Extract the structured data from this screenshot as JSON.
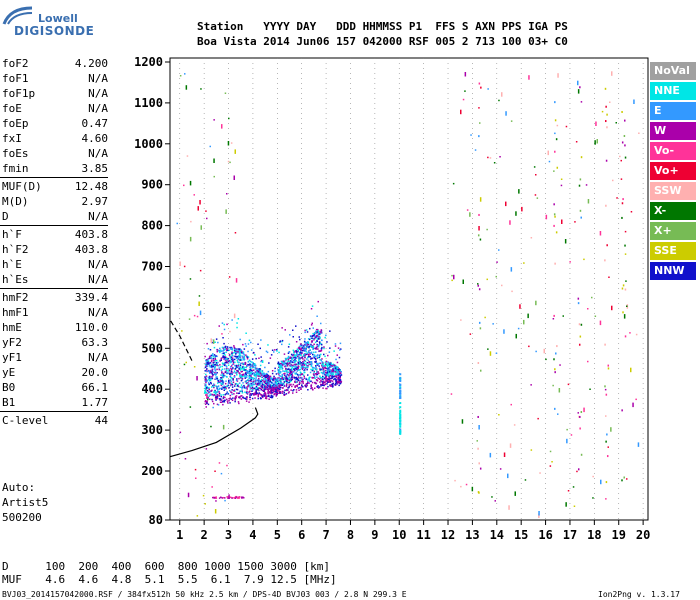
{
  "logo": {
    "line1": "Lowell",
    "line2": "DIGISONDE"
  },
  "header": {
    "line1": "Station   YYYY DAY   DDD HHMMSS P1  FFS S AXN PPS IGA PS",
    "line2": "Boa Vista 2014 Jun06 157 042000 RSF 005 2 713 100 03+ C0"
  },
  "params": [
    {
      "group": [
        {
          "label": "foF2",
          "value": "4.200"
        },
        {
          "label": "foF1",
          "value": "N/A"
        },
        {
          "label": "foF1p",
          "value": "N/A"
        },
        {
          "label": "foE",
          "value": "N/A"
        },
        {
          "label": "foEp",
          "value": "0.47"
        },
        {
          "label": "fxI",
          "value": "4.60"
        },
        {
          "label": "foEs",
          "value": "N/A"
        },
        {
          "label": "fmin",
          "value": "3.85"
        }
      ]
    },
    {
      "group": [
        {
          "label": "MUF(D)",
          "value": "12.48"
        },
        {
          "label": "M(D)",
          "value": "2.97"
        },
        {
          "label": "D",
          "value": "N/A"
        }
      ]
    },
    {
      "group": [
        {
          "label": "h`F",
          "value": "403.8"
        },
        {
          "label": "h`F2",
          "value": "403.8"
        },
        {
          "label": "h`E",
          "value": "N/A"
        },
        {
          "label": "h`Es",
          "value": "N/A"
        }
      ]
    },
    {
      "group": [
        {
          "label": "hmF2",
          "value": "339.4"
        },
        {
          "label": "hmF1",
          "value": "N/A"
        },
        {
          "label": "hmE",
          "value": "110.0"
        },
        {
          "label": "yF2",
          "value": "63.3"
        },
        {
          "label": "yF1",
          "value": "N/A"
        },
        {
          "label": "yE",
          "value": "20.0"
        },
        {
          "label": "B0",
          "value": "66.1"
        },
        {
          "label": "B1",
          "value": "1.77"
        }
      ]
    },
    {
      "group": [
        {
          "label": "C-level",
          "value": "44"
        }
      ]
    }
  ],
  "auto": [
    "Auto:",
    "Artist5",
    "500200"
  ],
  "legend": [
    {
      "label": "NoVal",
      "bg": "#a0a0a0",
      "fg": "#ffffff"
    },
    {
      "label": "NNE",
      "bg": "#00e6e6",
      "fg": "#ffffff"
    },
    {
      "label": "E",
      "bg": "#3399ff",
      "fg": "#ffffff"
    },
    {
      "label": "W",
      "bg": "#aa00aa",
      "fg": "#ffffff"
    },
    {
      "label": "Vo-",
      "bg": "#ff3399",
      "fg": "#ffffff"
    },
    {
      "label": "Vo+",
      "bg": "#ee0033",
      "fg": "#ffffff"
    },
    {
      "label": "SSW",
      "bg": "#ffb0b0",
      "fg": "#ffffff"
    },
    {
      "label": "X-",
      "bg": "#007700",
      "fg": "#ffffff"
    },
    {
      "label": "X+",
      "bg": "#77bb55",
      "fg": "#ffffff"
    },
    {
      "label": "SSE",
      "bg": "#cccc00",
      "fg": "#ffffff"
    },
    {
      "label": "NNW",
      "bg": "#1111cc",
      "fg": "#ffffff"
    }
  ],
  "chart_data": {
    "type": "scatter",
    "x_ticks": [
      "1",
      "2",
      "3",
      "4",
      "5",
      "6",
      "7",
      "8",
      "9",
      "10",
      "11",
      "12",
      "13",
      "14",
      "15",
      "16",
      "17",
      "18",
      "19",
      "20"
    ],
    "y_ticks": [
      "80",
      "200",
      "300",
      "400",
      "500",
      "600",
      "700",
      "800",
      "900",
      "1000",
      "1100",
      "1200"
    ],
    "xlim": [
      0.6,
      20.2
    ],
    "ylim": [
      80,
      1210
    ],
    "y_scale": "nonlinear (80 at bottom, 200 then linear 100-km steps)",
    "grid": "dotted vertical lines at each MHz",
    "main_echo_region": {
      "freq_range": [
        2.0,
        7.5
      ],
      "height_range": [
        350,
        600
      ]
    },
    "profile_curve": [
      [
        0.6,
        235
      ],
      [
        1.5,
        250
      ],
      [
        2.5,
        270
      ],
      [
        3.5,
        305
      ],
      [
        4.1,
        330
      ],
      [
        4.2,
        339
      ],
      [
        4.1,
        355
      ]
    ],
    "profile_dashed": [
      [
        1.5,
        470
      ],
      [
        1.0,
        530
      ],
      [
        0.6,
        570
      ]
    ]
  },
  "footer": {
    "row1_label": "D",
    "row1_values": "  100  200  400  600  800 1000 1500 3000 [km]",
    "row2_label": "MUF",
    "row2_values": "  4.6  4.6  4.8  5.1  5.5  6.1  7.9 12.5 [MHz]",
    "file_info": "BVJ03_2014157042000.RSF / 384fx512h 50 kHz 2.5 km / DPS-4D BVJ03 003 / 2.8 N 299.3 E",
    "version": "Ion2Png v. 1.3.17"
  }
}
